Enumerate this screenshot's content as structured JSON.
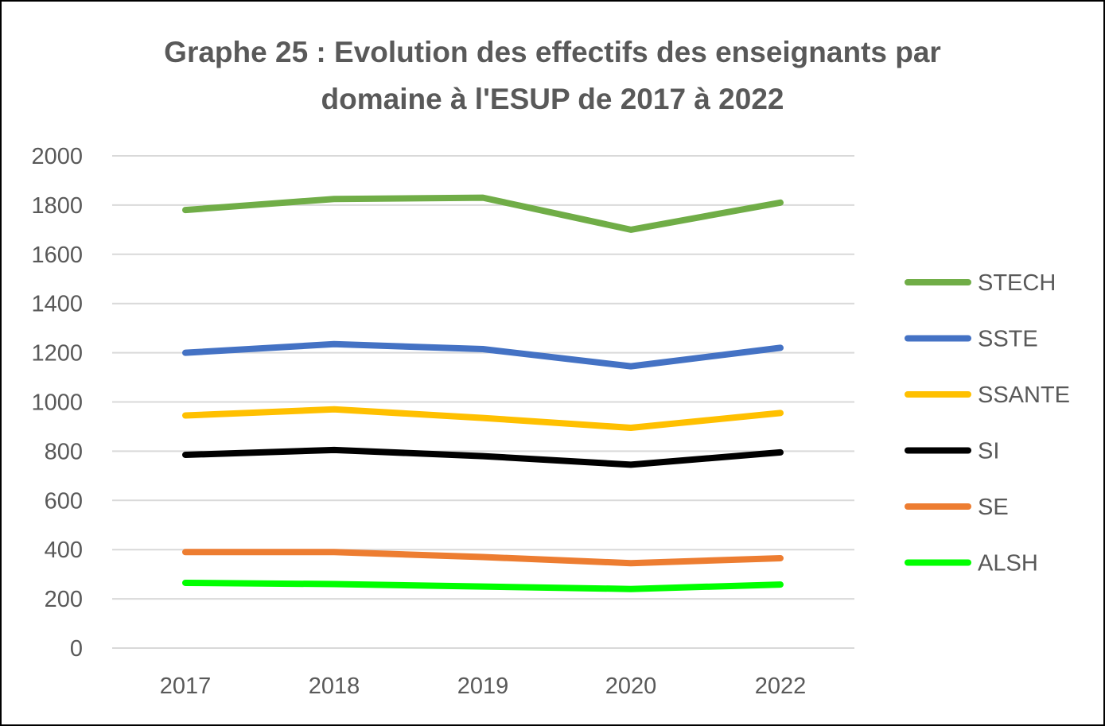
{
  "chart_data": {
    "type": "line",
    "title_lines": [
      "Graphe 25 : Evolution des effectifs des enseignants par",
      "domaine à l'ESUP de 2017 à 2022"
    ],
    "title": "Graphe 25 : Evolution des effectifs des enseignants par domaine à l'ESUP de 2017 à 2022",
    "categories": [
      "2017",
      "2018",
      "2019",
      "2020",
      "2022"
    ],
    "ylim": [
      0,
      2000
    ],
    "yticks": [
      "0",
      "200",
      "400",
      "600",
      "800",
      "1000",
      "1200",
      "1400",
      "1600",
      "1800",
      "2000"
    ],
    "grid": true,
    "legend_position": "right",
    "series": [
      {
        "name": "STECH",
        "color": "#70ad47",
        "values": [
          1780,
          1825,
          1830,
          1700,
          1810
        ]
      },
      {
        "name": "SSTE",
        "color": "#4472c4",
        "values": [
          1200,
          1235,
          1215,
          1145,
          1220
        ]
      },
      {
        "name": "SSANTE",
        "color": "#ffc000",
        "values": [
          945,
          970,
          935,
          895,
          955
        ]
      },
      {
        "name": "SI",
        "color": "#000000",
        "values": [
          785,
          805,
          780,
          745,
          795
        ]
      },
      {
        "name": "SE",
        "color": "#ed7d31",
        "values": [
          390,
          390,
          370,
          345,
          365
        ]
      },
      {
        "name": "ALSH",
        "color": "#00ff00",
        "values": [
          265,
          260,
          250,
          240,
          258
        ]
      }
    ]
  },
  "colors": {
    "title": "#595959",
    "axis_text": "#595959",
    "grid": "#d9d9d9"
  }
}
